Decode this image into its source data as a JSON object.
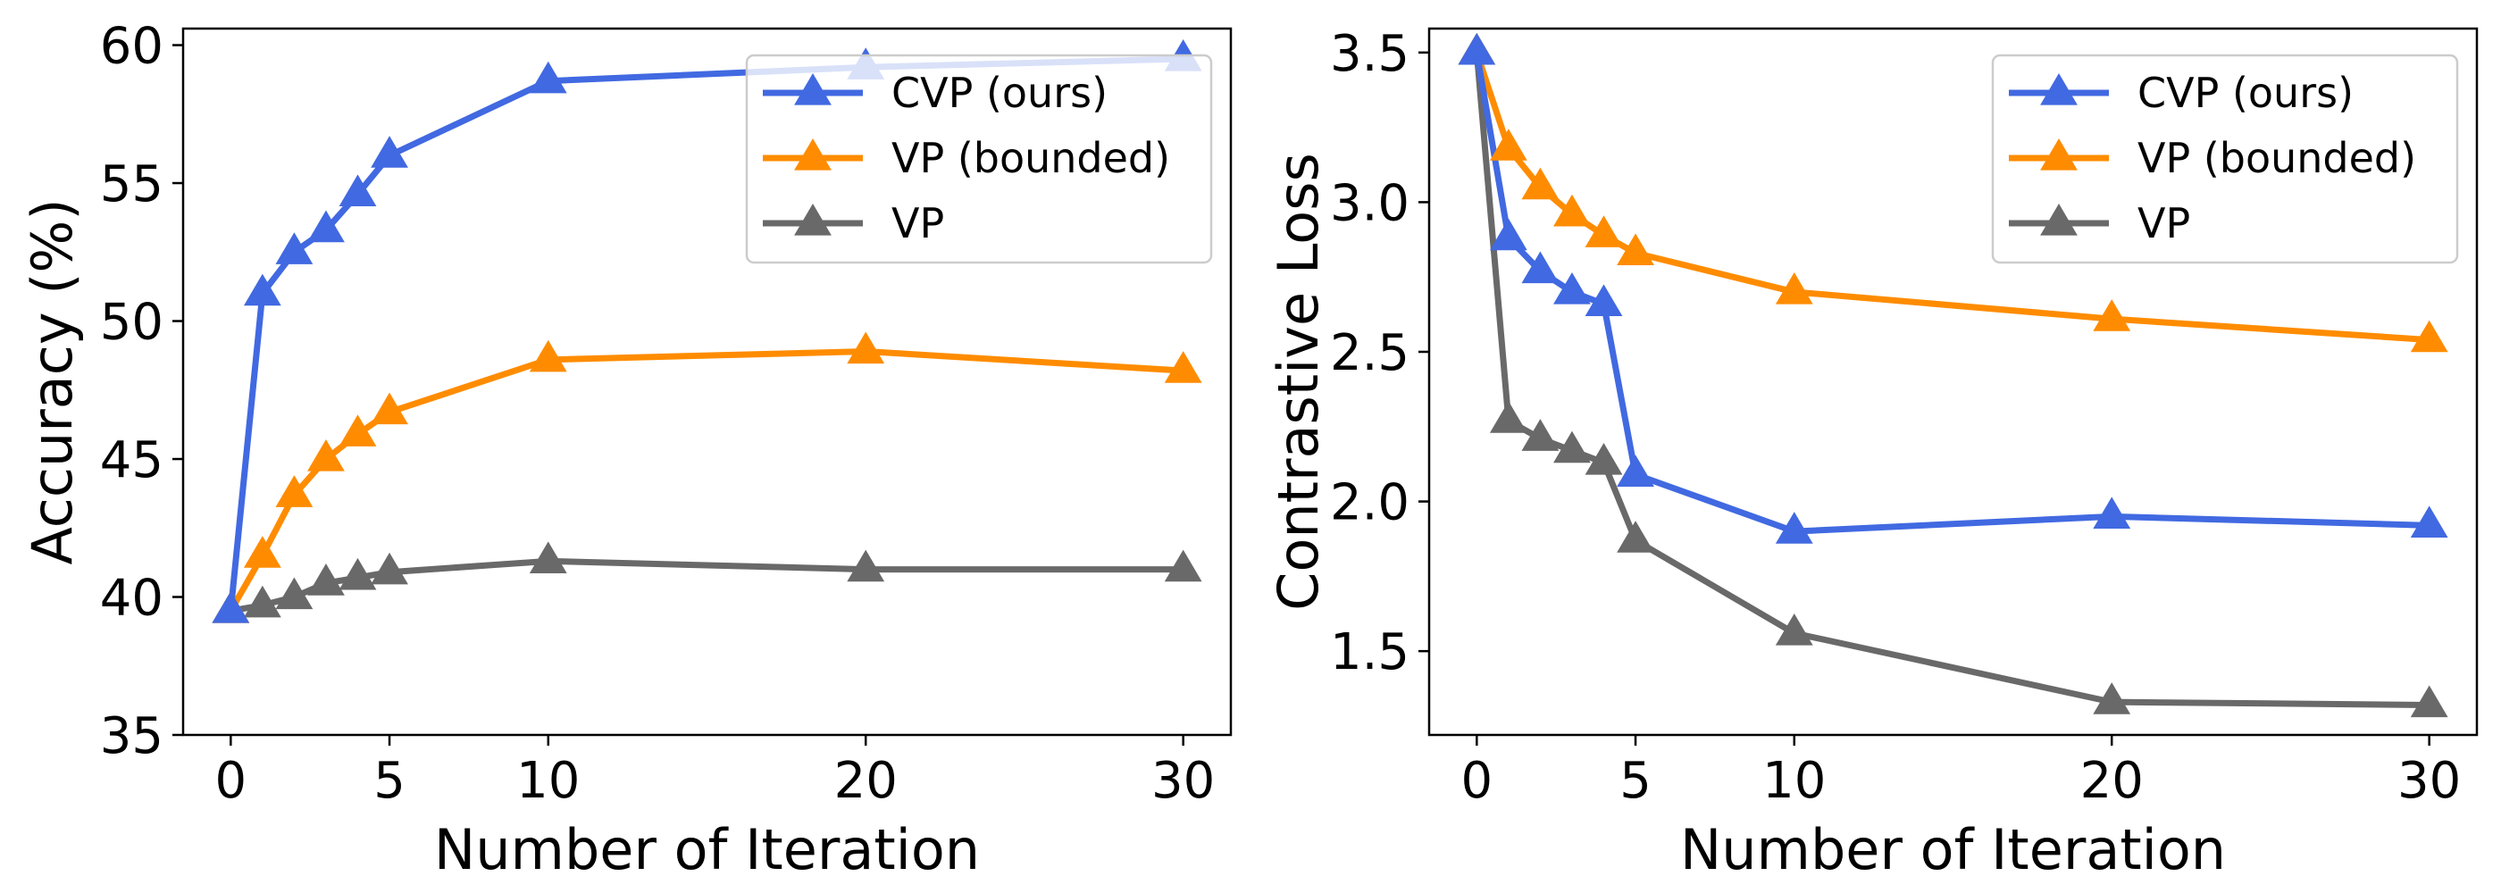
{
  "chart_data": [
    {
      "type": "line",
      "xlabel": "Number of Iteration",
      "ylabel": "Accuracy (%)",
      "xlim": [
        -1.5,
        31.5
      ],
      "ylim": [
        35,
        60.6
      ],
      "xticks": [
        0,
        5,
        10,
        20,
        30
      ],
      "yticks": [
        35,
        40,
        45,
        50,
        55,
        60
      ],
      "ytick_format": "int",
      "legend": "upper right",
      "x": [
        0,
        1,
        2,
        3,
        4,
        5,
        10,
        20,
        30
      ],
      "series": [
        {
          "name": "CVP (ours)",
          "color": "#4169E1",
          "values": [
            39.5,
            51.0,
            52.5,
            53.3,
            54.6,
            56.0,
            58.7,
            59.2,
            59.5
          ]
        },
        {
          "name": "VP (bounded)",
          "color": "#FF8C00",
          "values": [
            39.5,
            41.5,
            43.7,
            45.0,
            45.9,
            46.7,
            48.6,
            48.9,
            48.2
          ]
        },
        {
          "name": "VP",
          "color": "#696969",
          "values": [
            39.5,
            39.7,
            40.0,
            40.5,
            40.7,
            40.9,
            41.3,
            41.0,
            41.0
          ]
        }
      ]
    },
    {
      "type": "line",
      "xlabel": "Number of Iteration",
      "ylabel": "Contrastive Loss",
      "xlim": [
        -1.5,
        31.5
      ],
      "ylim": [
        1.22,
        3.58
      ],
      "xticks": [
        0,
        5,
        10,
        20,
        30
      ],
      "yticks": [
        1.5,
        2.0,
        2.5,
        3.0,
        3.5
      ],
      "ytick_format": "1dp",
      "legend": "upper right",
      "x": [
        0,
        1,
        2,
        3,
        4,
        5,
        10,
        20,
        30
      ],
      "series": [
        {
          "name": "CVP (ours)",
          "color": "#4169E1",
          "values": [
            3.5,
            2.88,
            2.77,
            2.7,
            2.66,
            2.09,
            1.9,
            1.95,
            1.92
          ]
        },
        {
          "name": "VP (bounded)",
          "color": "#FF8C00",
          "values": [
            3.5,
            3.18,
            3.05,
            2.96,
            2.89,
            2.83,
            2.7,
            2.61,
            2.54
          ]
        },
        {
          "name": "VP",
          "color": "#696969",
          "values": [
            3.5,
            2.27,
            2.21,
            2.17,
            2.13,
            1.87,
            1.56,
            1.33,
            1.32
          ]
        }
      ]
    }
  ]
}
